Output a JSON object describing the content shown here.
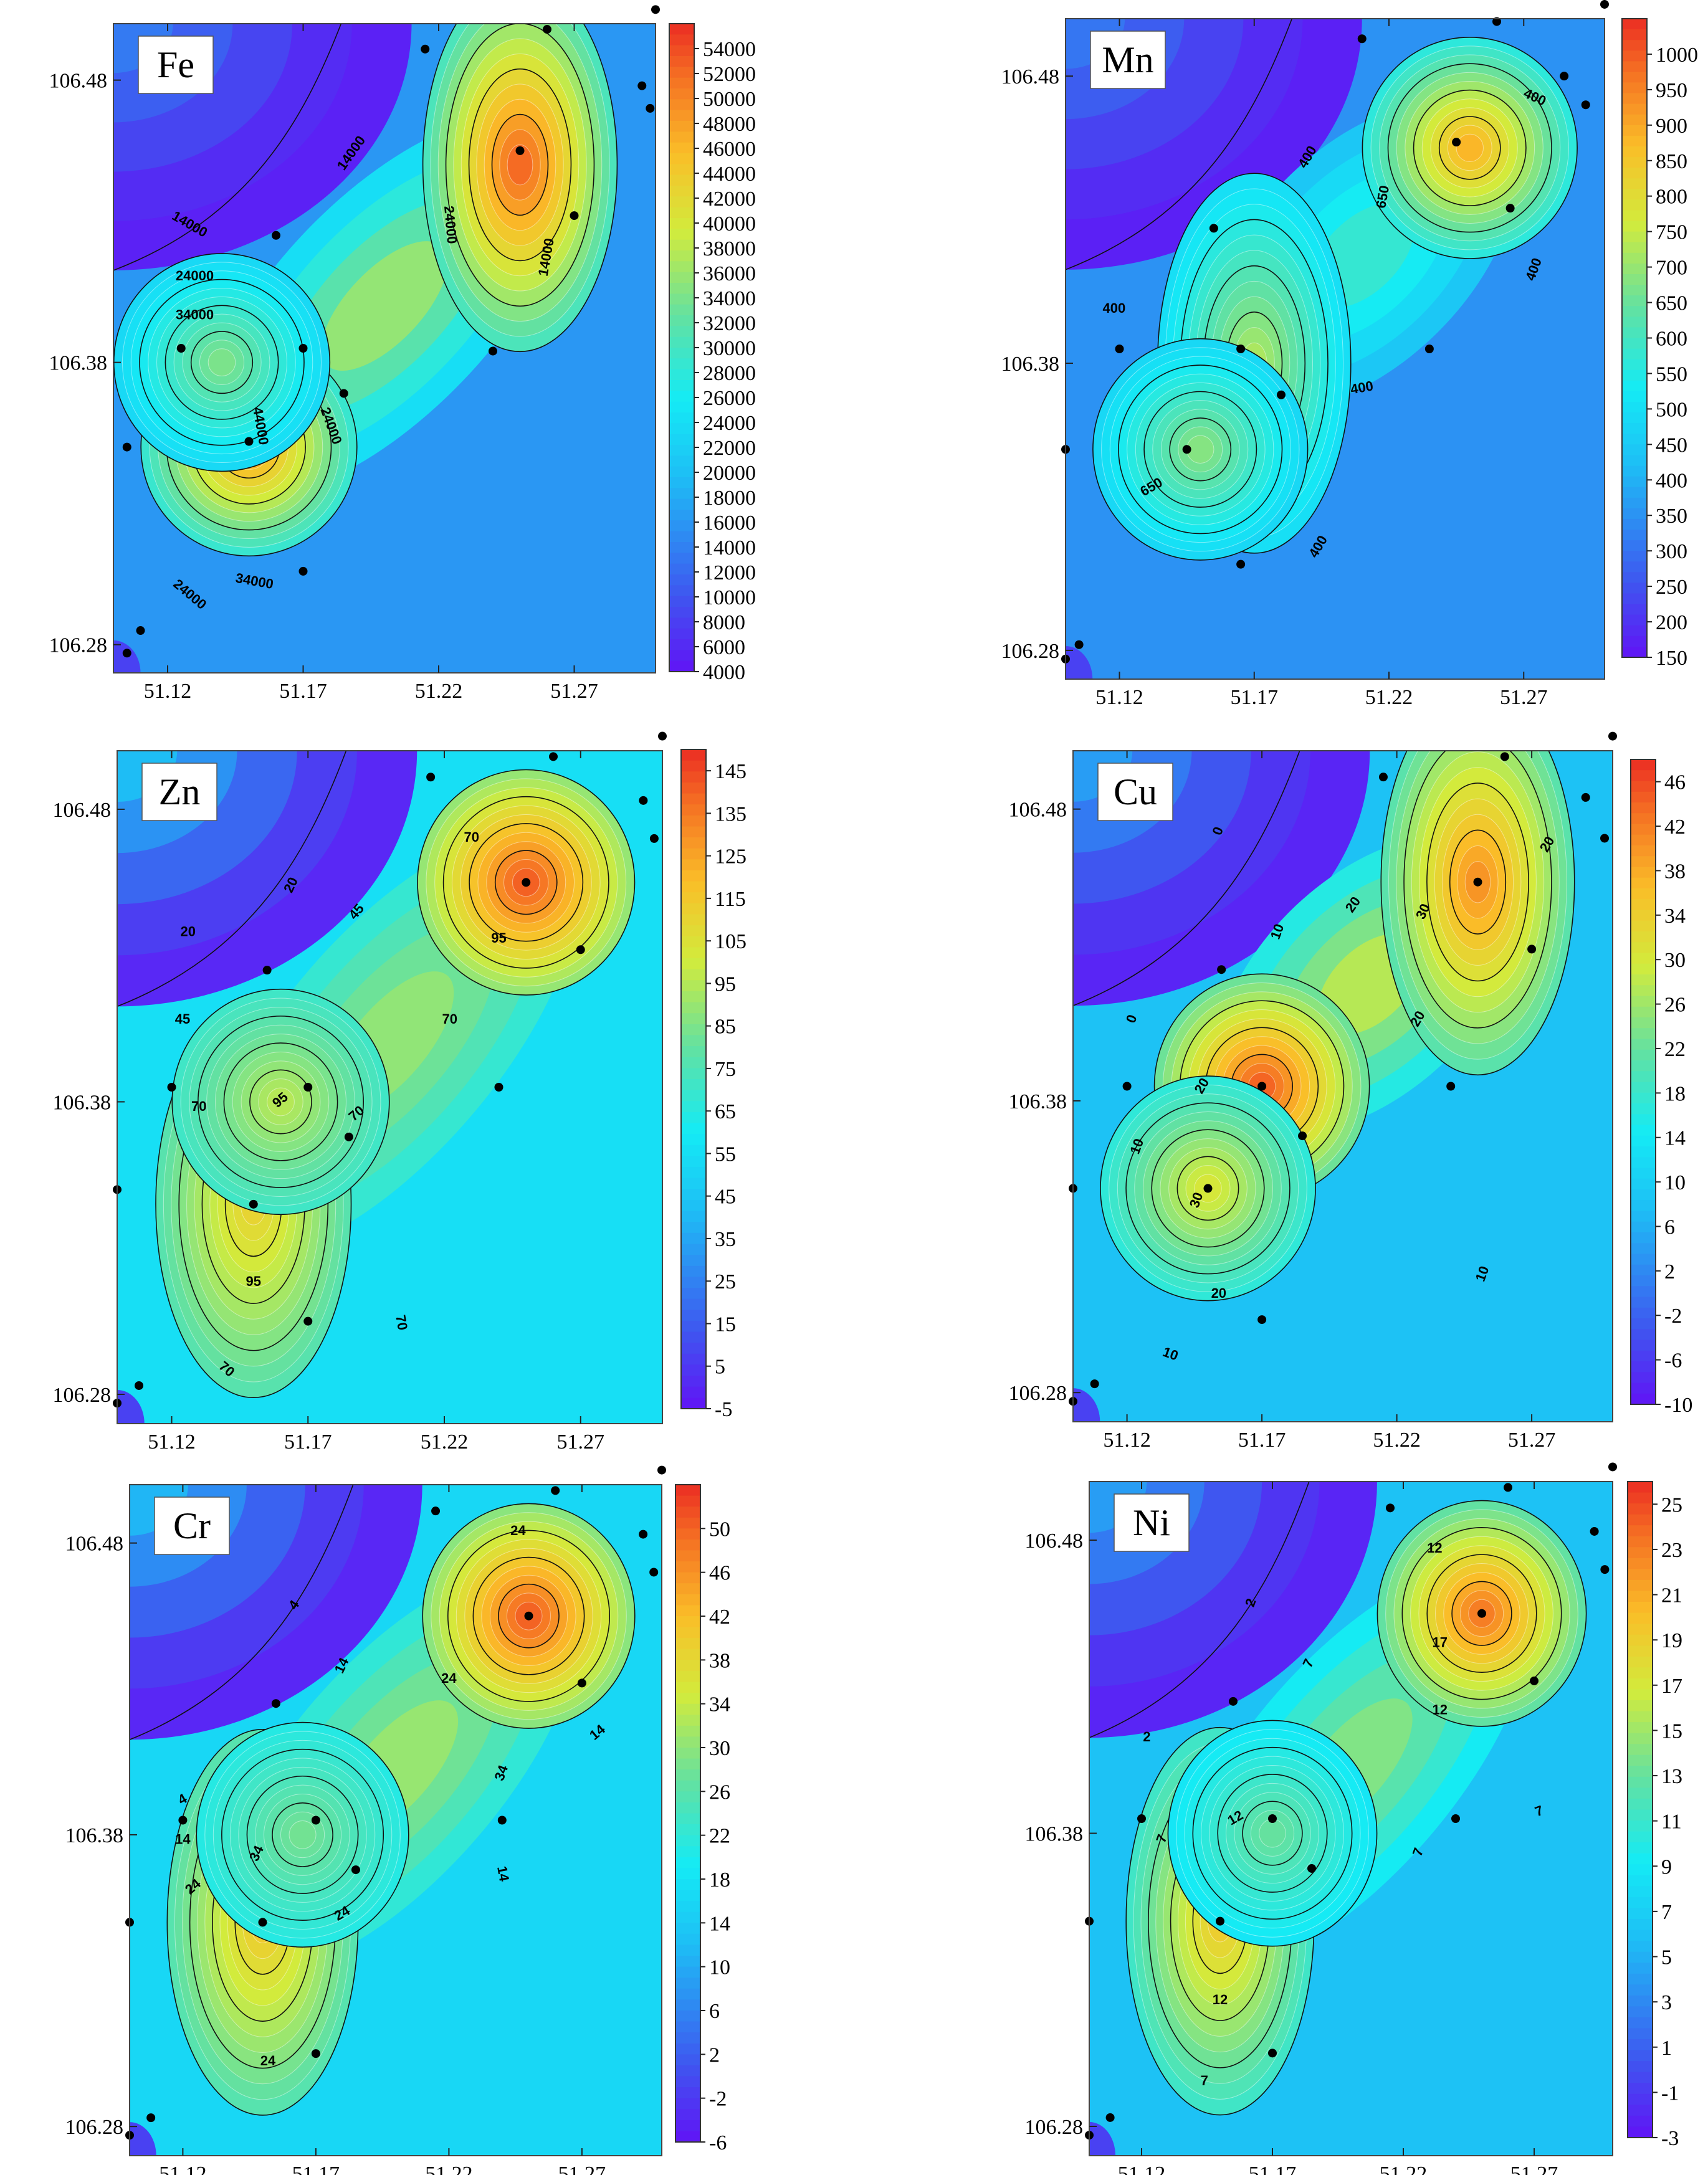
{
  "chart_data": [
    {
      "type": "heatmap",
      "subtype": "contour-map",
      "title": "Fe",
      "xticks": [
        "51.12",
        "51.17",
        "51.22",
        "51.27"
      ],
      "yticks": [
        "106.48",
        "106.38",
        "106.28"
      ],
      "xlim": [
        51.1,
        51.3
      ],
      "ylim": [
        106.27,
        106.5
      ],
      "colorbar": {
        "min": 4000,
        "max": 56000,
        "ticks": [
          54000,
          52000,
          50000,
          48000,
          46000,
          44000,
          42000,
          40000,
          38000,
          36000,
          34000,
          32000,
          30000,
          28000,
          26000,
          24000,
          22000,
          20000,
          18000,
          16000,
          14000,
          12000,
          10000,
          8000,
          6000,
          4000
        ]
      },
      "contour_labels": [
        "14000",
        "14000",
        "24000",
        "34000",
        "44000",
        "24000",
        "34000",
        "24000",
        "24000",
        "14000"
      ],
      "base_value": 16000,
      "peaks": [
        {
          "x": 51.15,
          "y": 106.35,
          "value": 48000
        },
        {
          "x": 51.25,
          "y": 106.45,
          "value": 52000
        },
        {
          "x": 51.14,
          "y": 106.38,
          "value": 34000
        }
      ],
      "sample_points": [
        [
          51.105,
          106.277
        ],
        [
          51.11,
          106.285
        ],
        [
          51.105,
          106.35
        ],
        [
          51.125,
          106.385
        ],
        [
          51.17,
          106.385
        ],
        [
          51.15,
          106.352
        ],
        [
          51.185,
          106.369
        ],
        [
          51.17,
          106.306
        ],
        [
          51.16,
          106.425
        ],
        [
          51.215,
          106.491
        ],
        [
          51.26,
          106.498
        ],
        [
          51.25,
          106.455
        ],
        [
          51.24,
          106.384
        ],
        [
          51.27,
          106.432
        ],
        [
          51.295,
          106.478
        ],
        [
          51.298,
          106.47
        ],
        [
          51.3,
          106.505
        ]
      ]
    },
    {
      "type": "heatmap",
      "subtype": "contour-map",
      "title": "Mn",
      "xticks": [
        "51.12",
        "51.17",
        "51.22",
        "51.27"
      ],
      "yticks": [
        "106.48",
        "106.38",
        "106.28"
      ],
      "xlim": [
        51.1,
        51.3
      ],
      "ylim": [
        106.27,
        106.5
      ],
      "colorbar": {
        "min": 150,
        "max": 1050,
        "ticks": [
          1000,
          950,
          900,
          850,
          800,
          750,
          700,
          650,
          600,
          550,
          500,
          450,
          400,
          350,
          300,
          250,
          200,
          150
        ]
      },
      "contour_labels": [
        "400",
        "400",
        "650",
        "400",
        "400",
        "400",
        "650",
        "400"
      ],
      "base_value": 350,
      "peaks": [
        {
          "x": 51.25,
          "y": 106.455,
          "value": 880
        },
        {
          "x": 51.17,
          "y": 106.38,
          "value": 720
        },
        {
          "x": 51.15,
          "y": 106.35,
          "value": 680
        }
      ],
      "sample_points": [
        [
          51.1,
          106.277
        ],
        [
          51.105,
          106.282
        ],
        [
          51.1,
          106.35
        ],
        [
          51.12,
          106.385
        ],
        [
          51.165,
          106.385
        ],
        [
          51.145,
          106.35
        ],
        [
          51.18,
          106.369
        ],
        [
          51.165,
          106.31
        ],
        [
          51.155,
          106.427
        ],
        [
          51.21,
          106.493
        ],
        [
          51.26,
          106.499
        ],
        [
          51.245,
          106.457
        ],
        [
          51.235,
          106.385
        ],
        [
          51.265,
          106.434
        ],
        [
          51.285,
          106.48
        ],
        [
          51.293,
          106.47
        ],
        [
          51.3,
          106.505
        ]
      ]
    },
    {
      "type": "heatmap",
      "subtype": "contour-map",
      "title": "Zn",
      "xticks": [
        "51.12",
        "51.17",
        "51.22",
        "51.27"
      ],
      "yticks": [
        "106.48",
        "106.38",
        "106.28"
      ],
      "xlim": [
        51.1,
        51.3
      ],
      "ylim": [
        106.27,
        106.5
      ],
      "colorbar": {
        "min": -5,
        "max": 150,
        "ticks": [
          145,
          135,
          125,
          115,
          105,
          95,
          85,
          75,
          65,
          55,
          45,
          35,
          25,
          15,
          5,
          -5
        ]
      },
      "contour_labels": [
        "20",
        "20",
        "45",
        "45",
        "70",
        "70",
        "95",
        "70",
        "70",
        "95",
        "95",
        "70",
        "70"
      ],
      "base_value": 55,
      "peaks": [
        {
          "x": 51.25,
          "y": 106.455,
          "value": 140
        },
        {
          "x": 51.15,
          "y": 106.345,
          "value": 110
        },
        {
          "x": 51.16,
          "y": 106.38,
          "value": 95
        }
      ],
      "sample_points": [
        [
          51.1,
          106.277
        ],
        [
          51.108,
          106.283
        ],
        [
          51.1,
          106.35
        ],
        [
          51.12,
          106.385
        ],
        [
          51.17,
          106.385
        ],
        [
          51.15,
          106.345
        ],
        [
          51.185,
          106.368
        ],
        [
          51.17,
          106.305
        ],
        [
          51.155,
          106.425
        ],
        [
          51.215,
          106.491
        ],
        [
          51.26,
          106.498
        ],
        [
          51.25,
          106.455
        ],
        [
          51.24,
          106.385
        ],
        [
          51.27,
          106.432
        ],
        [
          51.293,
          106.483
        ],
        [
          51.297,
          106.47
        ],
        [
          51.3,
          106.505
        ]
      ]
    },
    {
      "type": "heatmap",
      "subtype": "contour-map",
      "title": "Cu",
      "xticks": [
        "51.12",
        "51.17",
        "51.22",
        "51.27"
      ],
      "yticks": [
        "106.48",
        "106.38",
        "106.28"
      ],
      "xlim": [
        51.1,
        51.3
      ],
      "ylim": [
        106.27,
        106.5
      ],
      "colorbar": {
        "min": -10,
        "max": 48,
        "ticks": [
          46,
          42,
          38,
          34,
          30,
          26,
          22,
          18,
          14,
          10,
          6,
          2,
          -2,
          -6,
          -10
        ]
      },
      "contour_labels": [
        "0",
        "0",
        "10",
        "10",
        "20",
        "20",
        "30",
        "20",
        "30",
        "20",
        "10",
        "10",
        "20"
      ],
      "base_value": 8,
      "peaks": [
        {
          "x": 51.17,
          "y": 106.385,
          "value": 44
        },
        {
          "x": 51.25,
          "y": 106.455,
          "value": 40
        },
        {
          "x": 51.15,
          "y": 106.35,
          "value": 30
        }
      ],
      "sample_points": [
        [
          51.1,
          106.277
        ],
        [
          51.108,
          106.283
        ],
        [
          51.1,
          106.35
        ],
        [
          51.12,
          106.385
        ],
        [
          51.17,
          106.385
        ],
        [
          51.15,
          106.35
        ],
        [
          51.185,
          106.368
        ],
        [
          51.17,
          106.305
        ],
        [
          51.155,
          106.425
        ],
        [
          51.215,
          106.491
        ],
        [
          51.26,
          106.498
        ],
        [
          51.25,
          106.455
        ],
        [
          51.24,
          106.385
        ],
        [
          51.27,
          106.432
        ],
        [
          51.29,
          106.484
        ],
        [
          51.297,
          106.47
        ],
        [
          51.3,
          106.505
        ]
      ]
    },
    {
      "type": "heatmap",
      "subtype": "contour-map",
      "title": "Cr",
      "xticks": [
        "51.12",
        "51.17",
        "51.22",
        "51.27"
      ],
      "yticks": [
        "106.48",
        "106.38",
        "106.28"
      ],
      "xlim": [
        51.1,
        51.3
      ],
      "ylim": [
        106.27,
        106.5
      ],
      "colorbar": {
        "min": -6,
        "max": 54,
        "ticks": [
          50,
          46,
          42,
          38,
          34,
          30,
          26,
          22,
          18,
          14,
          10,
          6,
          2,
          -2,
          -6
        ]
      },
      "contour_labels": [
        "4",
        "4",
        "14",
        "14",
        "24",
        "24",
        "34",
        "24",
        "34",
        "24",
        "24",
        "14",
        "14"
      ],
      "base_value": 16,
      "peaks": [
        {
          "x": 51.25,
          "y": 106.455,
          "value": 50
        },
        {
          "x": 51.15,
          "y": 106.35,
          "value": 40
        },
        {
          "x": 51.165,
          "y": 106.38,
          "value": 28
        }
      ],
      "sample_points": [
        [
          51.1,
          106.277
        ],
        [
          51.108,
          106.283
        ],
        [
          51.1,
          106.35
        ],
        [
          51.12,
          106.385
        ],
        [
          51.17,
          106.385
        ],
        [
          51.15,
          106.35
        ],
        [
          51.185,
          106.368
        ],
        [
          51.17,
          106.305
        ],
        [
          51.155,
          106.425
        ],
        [
          51.215,
          106.491
        ],
        [
          51.26,
          106.498
        ],
        [
          51.25,
          106.455
        ],
        [
          51.24,
          106.385
        ],
        [
          51.27,
          106.432
        ],
        [
          51.293,
          106.483
        ],
        [
          51.297,
          106.47
        ],
        [
          51.3,
          106.505
        ]
      ]
    },
    {
      "type": "heatmap",
      "subtype": "contour-map",
      "title": "Ni",
      "xticks": [
        "51.12",
        "51.17",
        "51.22",
        "51.27"
      ],
      "yticks": [
        "106.48",
        "106.38",
        "106.28"
      ],
      "xlim": [
        51.1,
        51.3
      ],
      "ylim": [
        106.27,
        106.5
      ],
      "colorbar": {
        "min": -3,
        "max": 26,
        "ticks": [
          25,
          23,
          21,
          19,
          17,
          15,
          13,
          11,
          9,
          7,
          5,
          3,
          1,
          -1,
          -3
        ]
      },
      "contour_labels": [
        "2",
        "2",
        "7",
        "7",
        "12",
        "12",
        "17",
        "12",
        "12",
        "7",
        "7",
        "7"
      ],
      "base_value": 6,
      "peaks": [
        {
          "x": 51.25,
          "y": 106.455,
          "value": 23
        },
        {
          "x": 51.15,
          "y": 106.35,
          "value": 19
        },
        {
          "x": 51.17,
          "y": 106.38,
          "value": 13
        }
      ],
      "sample_points": [
        [
          51.1,
          106.277
        ],
        [
          51.108,
          106.283
        ],
        [
          51.1,
          106.35
        ],
        [
          51.12,
          106.385
        ],
        [
          51.17,
          106.385
        ],
        [
          51.15,
          106.35
        ],
        [
          51.185,
          106.368
        ],
        [
          51.17,
          106.305
        ],
        [
          51.155,
          106.425
        ],
        [
          51.215,
          106.491
        ],
        [
          51.26,
          106.498
        ],
        [
          51.25,
          106.455
        ],
        [
          51.24,
          106.385
        ],
        [
          51.27,
          106.432
        ],
        [
          51.293,
          106.483
        ],
        [
          51.297,
          106.47
        ],
        [
          51.3,
          106.505
        ]
      ]
    }
  ]
}
